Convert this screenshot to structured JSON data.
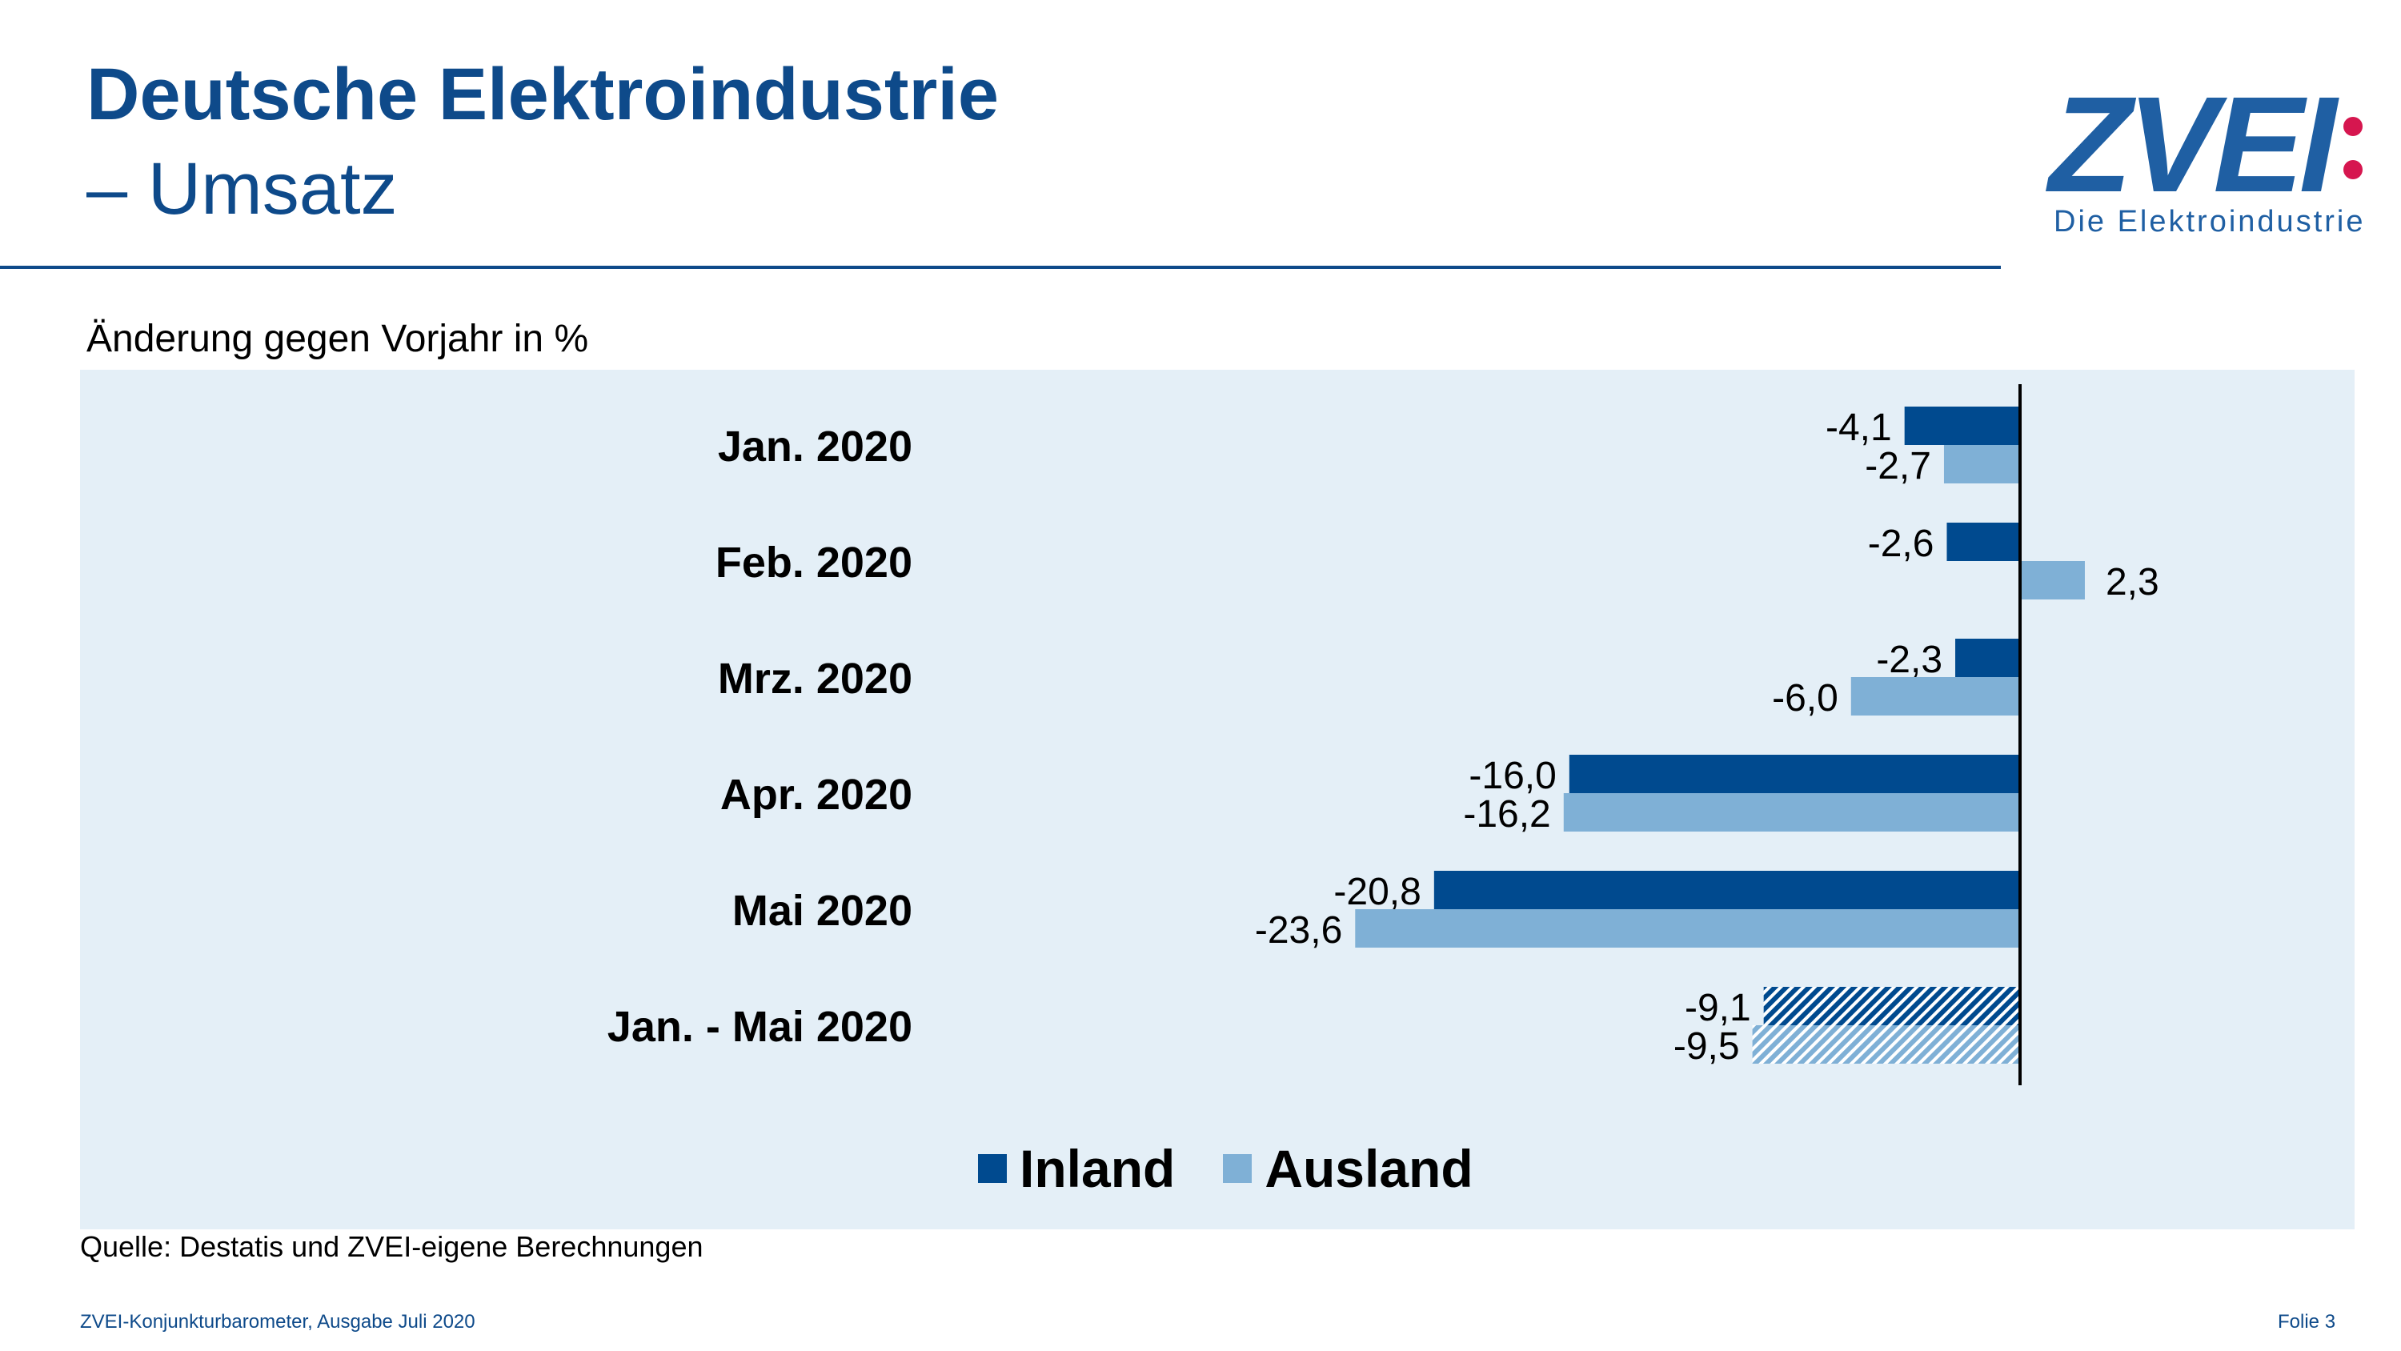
{
  "header": {
    "title": "Deutsche Elektroindustrie",
    "subtitle": "– Umsatz"
  },
  "logo": {
    "wordmark": "ZVEI",
    "tagline": "Die Elektroindustrie"
  },
  "chart_note": "Änderung gegen Vorjahr in %",
  "colors": {
    "inland": "#004a8f",
    "ausland": "#7fb0d6",
    "panel": "#e4eff7",
    "title": "#0e4a8a",
    "logo_blue": "#1f5fa3",
    "logo_dot": "#d6164f"
  },
  "chart_data": {
    "type": "bar",
    "orientation": "horizontal",
    "title": "",
    "xlabel": "",
    "ylabel": "",
    "grid": false,
    "legend_position": "bottom",
    "categories": [
      "Jan. 2020",
      "Feb. 2020",
      "Mrz. 2020",
      "Apr. 2020",
      "Mai 2020",
      "Jan. - Mai 2020"
    ],
    "series": [
      {
        "name": "Inland",
        "values": [
          -4.1,
          -2.6,
          -2.3,
          -16.0,
          -20.8,
          -9.1
        ],
        "labels": [
          "-4,1",
          "-2,6",
          "-2,3",
          "-16,0",
          "-20,8",
          "-9,1"
        ]
      },
      {
        "name": "Ausland",
        "values": [
          -2.7,
          2.3,
          -6.0,
          -16.2,
          -23.6,
          -9.5
        ],
        "labels": [
          "-2,7",
          "2,3",
          "-6,0",
          "-16,2",
          "-23,6",
          "-9,5"
        ]
      }
    ],
    "hatched_categories": [
      "Jan. - Mai 2020"
    ]
  },
  "legend": {
    "inland_label": "Inland",
    "ausland_label": "Ausland"
  },
  "source": "Quelle: Destatis und ZVEI-eigene Berechnungen",
  "footer": {
    "left": "ZVEI-Konjunkturbarometer, Ausgabe Juli 2020",
    "right": "Folie 3"
  }
}
